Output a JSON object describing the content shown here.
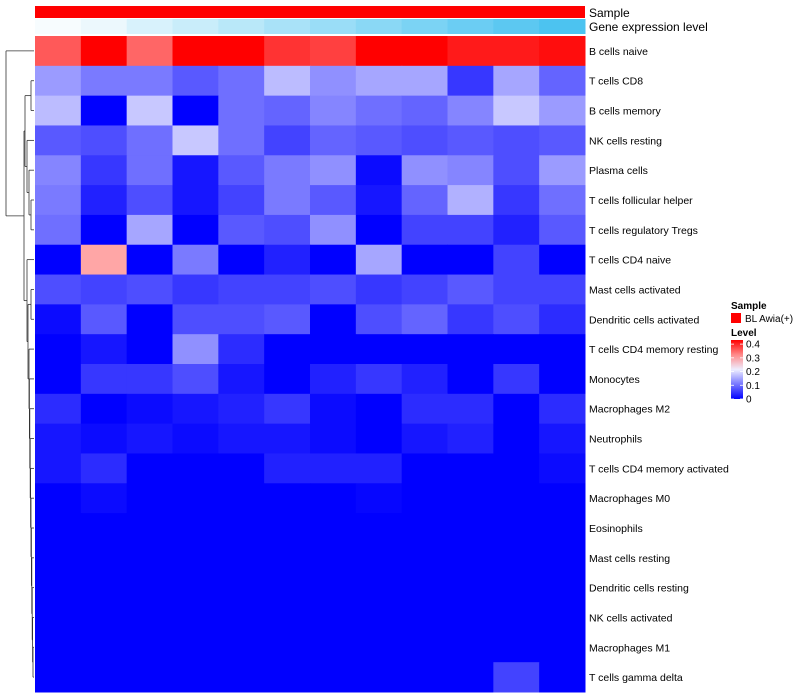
{
  "chart_data": {
    "type": "heatmap",
    "rows": [
      "B cells naive",
      "T cells CD8",
      "B cells memory",
      "NK cells resting",
      "Plasma cells",
      "T cells follicular helper",
      "T cells regulatory  Tregs",
      "T cells CD4 naive",
      "Mast cells activated",
      "Dendritic cells activated",
      "T cells CD4 memory resting",
      "Monocytes",
      "Macrophages M2",
      "Neutrophils",
      "T cells CD4 memory activated",
      "Macrophages M0",
      "Eosinophils",
      "Mast cells resting",
      "Dendritic cells resting",
      "NK cells activated",
      "Macrophages M1",
      "T cells gamma delta"
    ],
    "n_columns": 12,
    "values": [
      [
        0.36,
        0.45,
        0.35,
        0.46,
        0.46,
        0.39,
        0.38,
        0.46,
        0.44,
        0.41,
        0.41,
        0.42
      ],
      [
        0.14,
        0.11,
        0.11,
        0.08,
        0.1,
        0.17,
        0.13,
        0.15,
        0.15,
        0.05,
        0.15,
        0.09
      ],
      [
        0.17,
        0.0,
        0.18,
        0.0,
        0.1,
        0.09,
        0.12,
        0.1,
        0.09,
        0.12,
        0.18,
        0.14
      ],
      [
        0.08,
        0.07,
        0.1,
        0.18,
        0.1,
        0.06,
        0.09,
        0.08,
        0.07,
        0.08,
        0.07,
        0.08
      ],
      [
        0.12,
        0.05,
        0.1,
        0.02,
        0.08,
        0.11,
        0.13,
        0.01,
        0.13,
        0.12,
        0.07,
        0.14
      ],
      [
        0.11,
        0.03,
        0.07,
        0.02,
        0.06,
        0.11,
        0.08,
        0.02,
        0.09,
        0.16,
        0.05,
        0.1
      ],
      [
        0.1,
        0.0,
        0.15,
        0.0,
        0.08,
        0.07,
        0.13,
        0.0,
        0.06,
        0.06,
        0.03,
        0.08
      ],
      [
        0.0,
        0.3,
        0.0,
        0.11,
        0.0,
        0.03,
        0.0,
        0.15,
        0.0,
        0.0,
        0.06,
        0.0
      ],
      [
        0.07,
        0.06,
        0.07,
        0.05,
        0.06,
        0.06,
        0.07,
        0.05,
        0.06,
        0.08,
        0.06,
        0.06
      ],
      [
        0.01,
        0.08,
        0.0,
        0.07,
        0.07,
        0.08,
        0.0,
        0.07,
        0.09,
        0.05,
        0.07,
        0.04
      ],
      [
        0.0,
        0.02,
        0.0,
        0.13,
        0.04,
        0.0,
        0.0,
        0.0,
        0.0,
        0.0,
        0.0,
        0.0
      ],
      [
        0.0,
        0.05,
        0.05,
        0.07,
        0.02,
        0.0,
        0.03,
        0.05,
        0.03,
        0.0,
        0.05,
        0.0
      ],
      [
        0.04,
        0.0,
        0.01,
        0.02,
        0.03,
        0.05,
        0.01,
        0.0,
        0.04,
        0.04,
        0.0,
        0.04
      ],
      [
        0.02,
        0.01,
        0.02,
        0.01,
        0.02,
        0.02,
        0.01,
        0.0,
        0.02,
        0.03,
        0.0,
        0.02
      ],
      [
        0.02,
        0.04,
        0.0,
        0.0,
        0.0,
        0.03,
        0.03,
        0.03,
        0.0,
        0.0,
        0.0,
        0.01
      ],
      [
        0.0,
        0.01,
        0.0,
        0.0,
        0.0,
        0.0,
        0.0,
        0.005,
        0.0,
        0.0,
        0.0,
        0.0
      ],
      [
        0.0,
        0.0,
        0.0,
        0.0,
        0.0,
        0.0,
        0.0,
        0.0,
        0.0,
        0.0,
        0.0,
        0.0
      ],
      [
        0.0,
        0.0,
        0.0,
        0.0,
        0.0,
        0.0,
        0.0,
        0.0,
        0.0,
        0.0,
        0.0,
        0.0
      ],
      [
        0.0,
        0.0,
        0.0,
        0.0,
        0.0,
        0.0,
        0.0,
        0.0,
        0.0,
        0.0,
        0.0,
        0.0
      ],
      [
        0.0,
        0.0,
        0.0,
        0.0,
        0.0,
        0.0,
        0.0,
        0.0,
        0.0,
        0.0,
        0.0,
        0.0
      ],
      [
        0.0,
        0.0,
        0.0,
        0.0,
        0.0,
        0.0,
        0.0,
        0.0,
        0.0,
        0.0,
        0.0,
        0.0
      ],
      [
        0.0,
        0.0,
        0.0,
        0.0,
        0.0,
        0.0,
        0.0,
        0.0,
        0.0,
        0.0,
        0.06,
        0.0
      ]
    ],
    "annotations": {
      "sample": {
        "label": "Sample",
        "legend_title": "Sample",
        "category": "BL Awia(+)",
        "color": "#FF0000"
      },
      "expression": {
        "label": "Gene expression level",
        "values": [
          0.02,
          0.05,
          0.1,
          0.14,
          0.18,
          0.22,
          0.26,
          0.3,
          0.34,
          0.38,
          0.42,
          0.46
        ],
        "low_color": "#FFFFFF",
        "high_color": "#4CC3F0"
      }
    },
    "legend": {
      "title": "Level",
      "ticks": [
        "0.4",
        "0.3",
        "0.2",
        "0.1",
        "0"
      ],
      "tick_values": [
        0.4,
        0.3,
        0.2,
        0.1,
        0
      ],
      "range": [
        0,
        0.43
      ],
      "placement": "right"
    },
    "color_scale": {
      "low": "#0000FF",
      "mid": "#FFFFFF",
      "mid_value": 0.23,
      "high": "#FF0000"
    }
  }
}
